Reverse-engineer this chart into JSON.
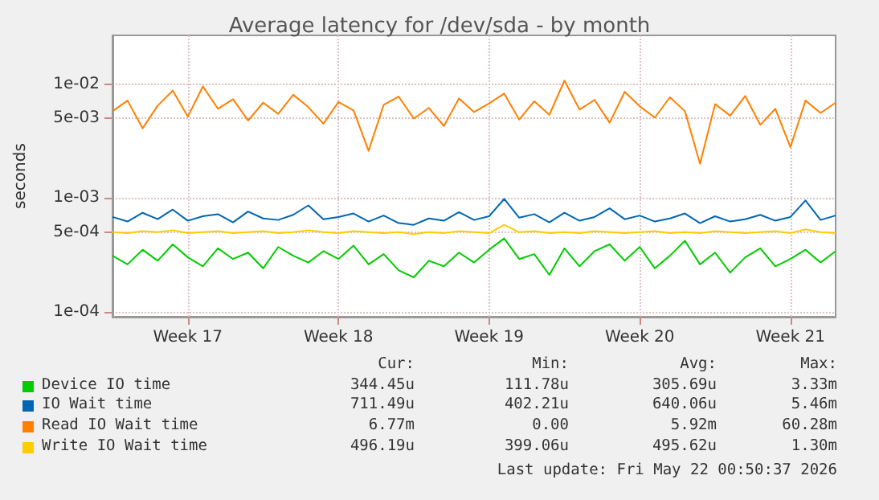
{
  "chart_data": {
    "type": "line",
    "title": "Average latency for /dev/sda - by month",
    "ylabel": "seconds",
    "log": "y",
    "grid": true,
    "legend": "bottom",
    "marker": "none",
    "line_style": "solid",
    "categories": [
      null,
      null,
      null,
      null,
      null,
      "Week 17",
      null,
      null,
      null,
      null,
      null,
      null,
      null,
      null,
      null,
      "Week 18",
      null,
      null,
      null,
      null,
      null,
      null,
      null,
      null,
      null,
      "Week 19",
      null,
      null,
      null,
      null,
      null,
      null,
      null,
      null,
      null,
      "Week 20",
      null,
      null,
      null,
      null,
      null,
      null,
      null,
      null,
      null,
      "Week 21",
      null,
      null,
      null
    ],
    "ylim": [
      9e-05,
      0.027
    ],
    "yticks": [
      {
        "value": 0.0001,
        "label": "1e-04"
      },
      {
        "value": 0.0005,
        "label": "5e-04"
      },
      {
        "value": 0.001,
        "label": "1e-03"
      },
      {
        "value": 0.005,
        "label": "5e-03"
      },
      {
        "value": 0.01,
        "label": "1e-02"
      }
    ],
    "series": [
      {
        "name": "Device IO time",
        "color": "#00cc00",
        "values": [
          0.00031,
          0.00026,
          0.00035,
          0.00028,
          0.00039,
          0.0003,
          0.00025,
          0.00036,
          0.00029,
          0.00033,
          0.00024,
          0.00037,
          0.00031,
          0.00027,
          0.00034,
          0.00029,
          0.00038,
          0.00026,
          0.00032,
          0.00023,
          0.0002,
          0.00028,
          0.00025,
          0.00033,
          0.00027,
          0.00035,
          0.00044,
          0.00029,
          0.00032,
          0.00021,
          0.00036,
          0.00025,
          0.00034,
          0.00039,
          0.00028,
          0.00037,
          0.00024,
          0.00031,
          0.00042,
          0.00026,
          0.00033,
          0.00022,
          0.0003,
          0.00036,
          0.00025,
          0.00029,
          0.00035,
          0.00027,
          0.00034
        ]
      },
      {
        "name": "IO Wait time",
        "color": "#0066b3",
        "values": [
          0.00068,
          0.00062,
          0.00074,
          0.00065,
          0.00079,
          0.00063,
          0.00069,
          0.00072,
          0.00061,
          0.00076,
          0.00066,
          0.00064,
          0.00071,
          0.00086,
          0.00065,
          0.00068,
          0.00073,
          0.00062,
          0.0007,
          0.0006,
          0.00058,
          0.00066,
          0.00063,
          0.00075,
          0.00064,
          0.00069,
          0.00098,
          0.00067,
          0.00072,
          0.00061,
          0.00074,
          0.00063,
          0.00068,
          0.00081,
          0.00065,
          0.0007,
          0.00062,
          0.00066,
          0.00073,
          0.0006,
          0.00069,
          0.00062,
          0.00065,
          0.00071,
          0.00063,
          0.00068,
          0.00095,
          0.00064,
          0.0007
        ]
      },
      {
        "name": "Read IO Wait time",
        "color": "#ff8000",
        "values": [
          0.0058,
          0.0072,
          0.0041,
          0.0065,
          0.0088,
          0.0052,
          0.0096,
          0.0061,
          0.0074,
          0.0048,
          0.0069,
          0.0055,
          0.0081,
          0.0063,
          0.0045,
          0.007,
          0.0059,
          0.0026,
          0.0066,
          0.0078,
          0.005,
          0.0062,
          0.0043,
          0.0075,
          0.0057,
          0.0068,
          0.0083,
          0.0049,
          0.0071,
          0.0054,
          0.0108,
          0.006,
          0.0073,
          0.0046,
          0.0086,
          0.0064,
          0.0051,
          0.0077,
          0.0058,
          0.002,
          0.0067,
          0.0053,
          0.0079,
          0.0044,
          0.0061,
          0.0028,
          0.0072,
          0.0056,
          0.0069
        ]
      },
      {
        "name": "Write IO Wait time",
        "color": "#ffcc00",
        "values": [
          0.0005,
          0.00049,
          0.00051,
          0.0005,
          0.00052,
          0.00049,
          0.0005,
          0.00051,
          0.00049,
          0.0005,
          0.00051,
          0.00049,
          0.0005,
          0.00052,
          0.0005,
          0.00049,
          0.00051,
          0.0005,
          0.00049,
          0.0005,
          0.00048,
          0.0005,
          0.00049,
          0.00051,
          0.0005,
          0.00049,
          0.00058,
          0.0005,
          0.00051,
          0.00049,
          0.0005,
          0.00049,
          0.00051,
          0.0005,
          0.00049,
          0.0005,
          0.00051,
          0.00049,
          0.0005,
          0.00049,
          0.00051,
          0.0005,
          0.00049,
          0.0005,
          0.00051,
          0.00049,
          0.00053,
          0.0005,
          0.00049
        ]
      }
    ],
    "annotations": [
      "Cur:",
      "Min:",
      "Avg:",
      "Max:",
      "344.45u",
      "111.78u",
      "305.69u",
      "3.33m",
      "711.49u",
      "402.21u",
      "640.06u",
      "5.46m",
      "6.77m",
      "0.00",
      "5.92m",
      "60.28m",
      "496.19u",
      "399.06u",
      "495.62u",
      "1.30m",
      "Last update: Fri May 22 00:50:37 2026"
    ]
  }
}
